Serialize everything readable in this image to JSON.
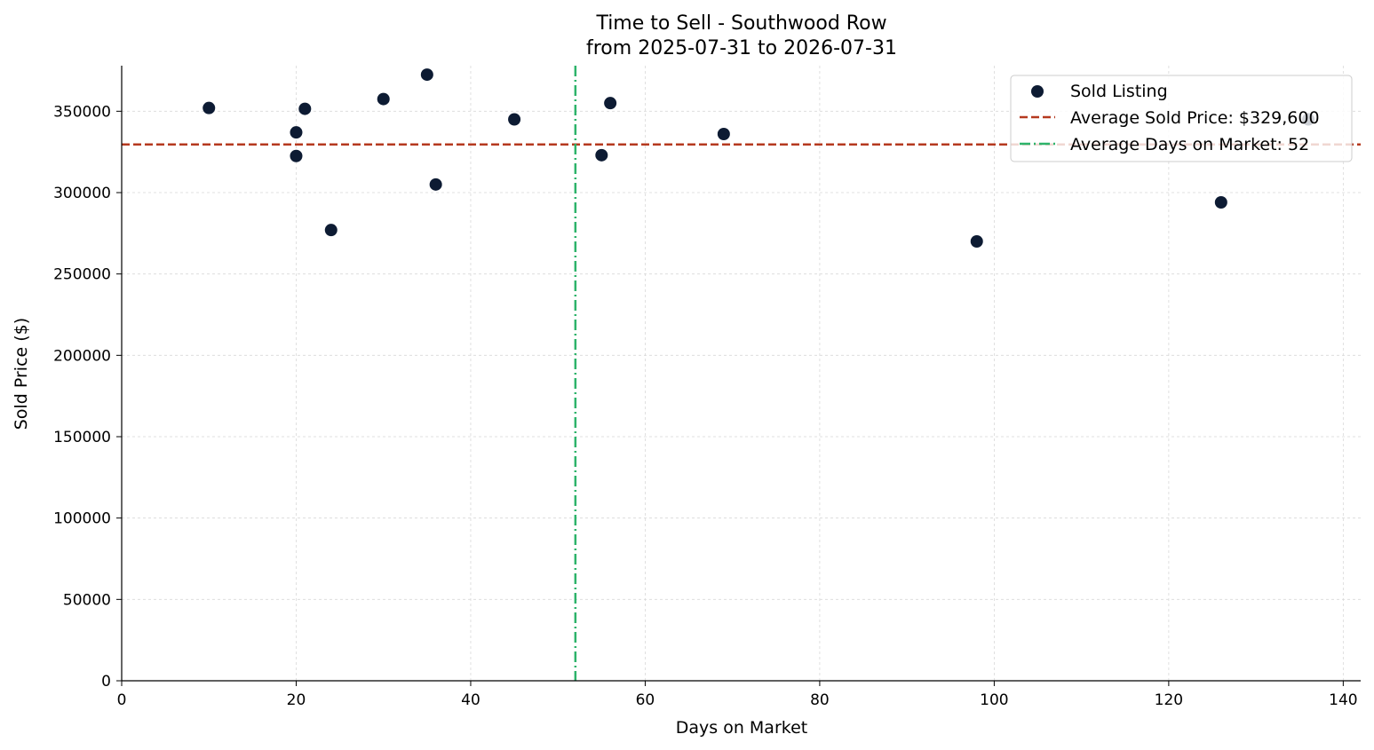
{
  "chart_data": {
    "type": "scatter",
    "title": "Time to Sell - Southwood Row",
    "subtitle": "from 2025-07-31 to 2026-07-31",
    "xlabel": "Days on Market",
    "ylabel": "Sold Price ($)",
    "xlim": [
      0,
      142
    ],
    "ylim": [
      0,
      378000
    ],
    "xticks": [
      0,
      20,
      40,
      60,
      80,
      100,
      120,
      140
    ],
    "yticks": [
      0,
      50000,
      100000,
      150000,
      200000,
      250000,
      300000,
      350000
    ],
    "grid": true,
    "legend_position": "top-right",
    "series": [
      {
        "name": "Sold Listing",
        "color": "#0d1b33",
        "points": [
          {
            "x": 10,
            "y": 352000
          },
          {
            "x": 20,
            "y": 337000
          },
          {
            "x": 20,
            "y": 322500
          },
          {
            "x": 21,
            "y": 351500
          },
          {
            "x": 24,
            "y": 277000
          },
          {
            "x": 30,
            "y": 357500
          },
          {
            "x": 35,
            "y": 372500
          },
          {
            "x": 36,
            "y": 305000
          },
          {
            "x": 45,
            "y": 345000
          },
          {
            "x": 55,
            "y": 323000
          },
          {
            "x": 56,
            "y": 355000
          },
          {
            "x": 69,
            "y": 336000
          },
          {
            "x": 98,
            "y": 270000
          },
          {
            "x": 126,
            "y": 294000
          },
          {
            "x": 136,
            "y": 345000
          }
        ]
      }
    ],
    "reference_lines": {
      "avg_price": {
        "label": "Average Sold Price: $329,600",
        "value": 329600,
        "color": "#b5391f",
        "style": "dashed"
      },
      "avg_days": {
        "label": "Average Days on Market: 52",
        "value": 52,
        "color": "#2db36a",
        "style": "dashdot"
      }
    }
  }
}
